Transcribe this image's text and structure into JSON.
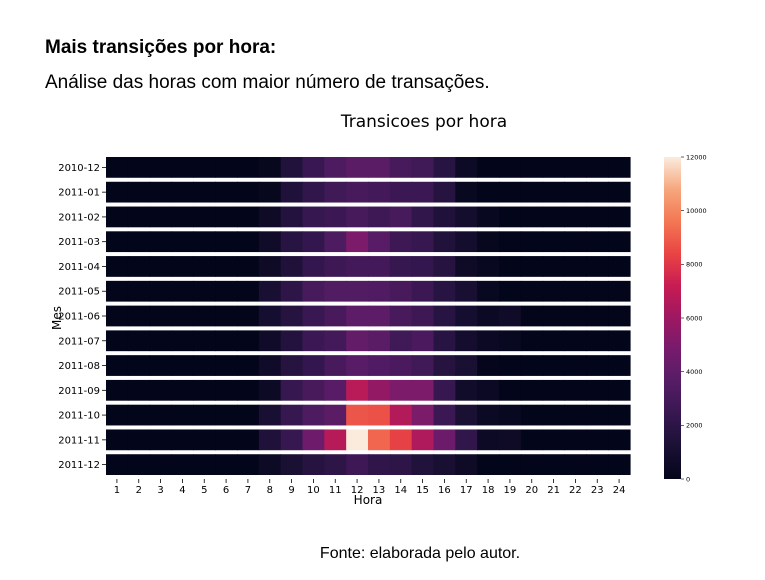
{
  "page": {
    "heading": "Mais transições por hora:",
    "subheading": "Análise das horas com maior número de transações.",
    "footer": "Fonte: elaborada pelo autor."
  },
  "chart_data": {
    "type": "heatmap",
    "title": "Transicoes por hora",
    "xlabel": "Hora",
    "ylabel": "Mes",
    "x": [
      1,
      2,
      3,
      4,
      5,
      6,
      7,
      8,
      9,
      10,
      11,
      12,
      13,
      14,
      15,
      16,
      17,
      18,
      19,
      20,
      21,
      22,
      23,
      24
    ],
    "y": [
      "2010-12",
      "2011-01",
      "2011-02",
      "2011-03",
      "2011-04",
      "2011-05",
      "2011-06",
      "2011-07",
      "2011-08",
      "2011-09",
      "2011-10",
      "2011-11",
      "2011-12"
    ],
    "values": [
      [
        0,
        0,
        0,
        0,
        0,
        0,
        0,
        200,
        1500,
        2500,
        3300,
        3800,
        3800,
        3000,
        2800,
        1800,
        500,
        0,
        0,
        0,
        0,
        0,
        0,
        0
      ],
      [
        0,
        0,
        0,
        0,
        0,
        0,
        0,
        200,
        1400,
        2200,
        2800,
        3000,
        2900,
        2600,
        2600,
        1700,
        300,
        0,
        0,
        0,
        0,
        0,
        0,
        0
      ],
      [
        0,
        0,
        0,
        0,
        0,
        0,
        0,
        600,
        1600,
        2400,
        2600,
        3000,
        2700,
        3000,
        2200,
        1400,
        900,
        300,
        0,
        0,
        0,
        0,
        0,
        0
      ],
      [
        0,
        0,
        0,
        0,
        0,
        0,
        0,
        700,
        1800,
        2300,
        3300,
        5000,
        3700,
        2700,
        2400,
        1500,
        900,
        200,
        0,
        0,
        0,
        0,
        0,
        0
      ],
      [
        0,
        0,
        0,
        0,
        0,
        0,
        0,
        600,
        1400,
        2300,
        2700,
        2900,
        2900,
        2400,
        2300,
        1700,
        600,
        300,
        0,
        0,
        0,
        0,
        0,
        0
      ],
      [
        0,
        0,
        0,
        0,
        0,
        0,
        0,
        1100,
        2000,
        3000,
        3500,
        3500,
        3400,
        3100,
        2600,
        1800,
        1100,
        300,
        0,
        0,
        0,
        0,
        0,
        0
      ],
      [
        0,
        0,
        0,
        0,
        0,
        0,
        0,
        1000,
        1700,
        2500,
        3100,
        3900,
        3900,
        3100,
        2700,
        1800,
        1000,
        400,
        700,
        0,
        0,
        0,
        0,
        0
      ],
      [
        0,
        0,
        0,
        0,
        0,
        0,
        0,
        700,
        1600,
        2600,
        2900,
        4100,
        3800,
        2800,
        3200,
        1800,
        900,
        400,
        300,
        0,
        0,
        0,
        0,
        0
      ],
      [
        0,
        0,
        0,
        0,
        0,
        0,
        0,
        700,
        1700,
        2300,
        3100,
        3700,
        3400,
        3200,
        2800,
        1700,
        1200,
        100,
        0,
        0,
        0,
        0,
        0,
        0
      ],
      [
        0,
        0,
        0,
        0,
        0,
        0,
        0,
        500,
        2400,
        3100,
        3700,
        6800,
        5700,
        5000,
        5000,
        2400,
        800,
        400,
        0,
        0,
        0,
        0,
        0,
        0
      ],
      [
        0,
        0,
        0,
        0,
        0,
        0,
        0,
        1100,
        2400,
        3300,
        3800,
        8800,
        8700,
        6600,
        5000,
        2600,
        1200,
        400,
        300,
        0,
        0,
        0,
        0,
        0
      ],
      [
        0,
        0,
        0,
        0,
        0,
        0,
        0,
        1400,
        2400,
        4500,
        6700,
        12000,
        9200,
        8300,
        6500,
        4400,
        2200,
        500,
        600,
        0,
        0,
        0,
        0,
        0
      ],
      [
        0,
        0,
        0,
        0,
        0,
        0,
        0,
        500,
        1200,
        1700,
        2000,
        2700,
        2100,
        2000,
        1500,
        1100,
        600,
        0,
        0,
        0,
        0,
        0,
        0,
        0
      ]
    ],
    "colormap": "rocket",
    "colorbar": {
      "min": 0,
      "max": 12000,
      "ticks": [
        0,
        2000,
        4000,
        6000,
        8000,
        10000,
        12000
      ]
    },
    "row_separator_color": "#ffffff",
    "grid": false
  }
}
